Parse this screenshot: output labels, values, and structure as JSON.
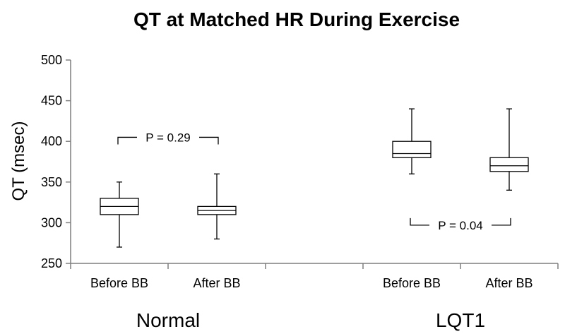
{
  "chart_data": {
    "type": "box",
    "title": "QT at Matched HR During Exercise",
    "ylabel": "QT (msec)",
    "ylim": [
      250,
      500
    ],
    "yticks": [
      250,
      300,
      350,
      400,
      450,
      500
    ],
    "grid": false,
    "groups": [
      {
        "label": "Normal",
        "boxes": [
          {
            "category": "Before BB",
            "min": 270,
            "q1": 310,
            "median": 320,
            "q3": 330,
            "max": 350
          },
          {
            "category": "After BB",
            "min": 280,
            "q1": 310,
            "median": 315,
            "q3": 320,
            "max": 360
          }
        ],
        "annotation": {
          "text": "P = 0.29",
          "y": 405,
          "direction": "down"
        }
      },
      {
        "label": "LQT1",
        "boxes": [
          {
            "category": "Before BB",
            "min": 360,
            "q1": 380,
            "median": 385,
            "q3": 400,
            "max": 440
          },
          {
            "category": "After BB",
            "min": 340,
            "q1": 363,
            "median": 370,
            "q3": 380,
            "max": 440
          }
        ],
        "annotation": {
          "text": "P = 0.04",
          "y": 297,
          "direction": "up"
        }
      }
    ]
  }
}
